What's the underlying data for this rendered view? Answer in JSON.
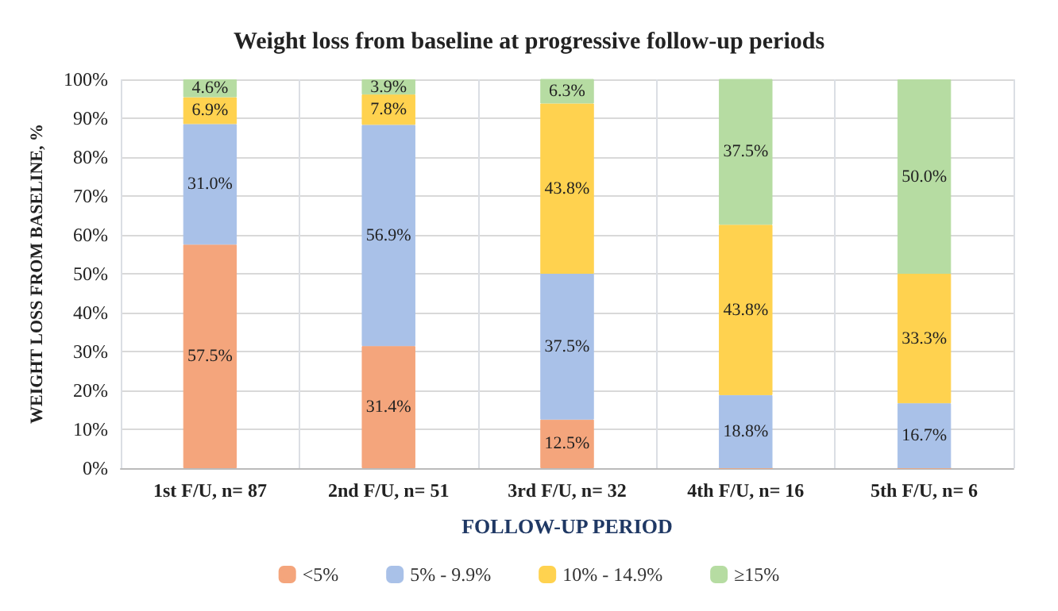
{
  "chart_data": {
    "type": "bar",
    "stacked": true,
    "title": "Weight loss from baseline at progressive follow-up periods",
    "xlabel": "FOLLOW-UP PERIOD",
    "ylabel": "WEIGHT LOSS FROM BASELINE, %",
    "categories": [
      "1st F/U, n= 87",
      "2nd F/U, n= 51",
      "3rd F/U, n= 32",
      "4th F/U, n= 16",
      "5th F/U, n= 6"
    ],
    "series": [
      {
        "name": "<5%",
        "color": "#f4a57c",
        "values": [
          57.5,
          31.4,
          12.5,
          0,
          0
        ],
        "value_labels": [
          "57.5%",
          "31.4%",
          "12.5%",
          null,
          null
        ]
      },
      {
        "name": "5% - 9.9%",
        "color": "#a9c1e8",
        "values": [
          31.0,
          56.9,
          37.5,
          18.8,
          16.7
        ],
        "value_labels": [
          "31.0%",
          "56.9%",
          "37.5%",
          "18.8%",
          "16.7%"
        ]
      },
      {
        "name": "10% - 14.9%",
        "color": "#ffd24f",
        "values": [
          6.9,
          7.8,
          43.8,
          43.8,
          33.3
        ],
        "value_labels": [
          "6.9%",
          "7.8%",
          "43.8%",
          "43.8%",
          "33.3%"
        ]
      },
      {
        "name": "≥15%",
        "color": "#b6dca2",
        "values": [
          4.6,
          3.9,
          6.3,
          37.5,
          50.0
        ],
        "value_labels": [
          "4.6%",
          "3.9%",
          "6.3%",
          "37.5%",
          "50.0%"
        ]
      }
    ],
    "ylim": [
      0,
      100
    ],
    "yticks": [
      {
        "value": 0,
        "label": "0%"
      },
      {
        "value": 10,
        "label": "10%"
      },
      {
        "value": 20,
        "label": "20%"
      },
      {
        "value": 30,
        "label": "30%"
      },
      {
        "value": 40,
        "label": "40%"
      },
      {
        "value": 50,
        "label": "50%"
      },
      {
        "value": 60,
        "label": "60%"
      },
      {
        "value": 70,
        "label": "70%"
      },
      {
        "value": 80,
        "label": "80%"
      },
      {
        "value": 90,
        "label": "90%"
      },
      {
        "value": 100,
        "label": "100%"
      }
    ],
    "grid": true,
    "legend": "bottom"
  }
}
